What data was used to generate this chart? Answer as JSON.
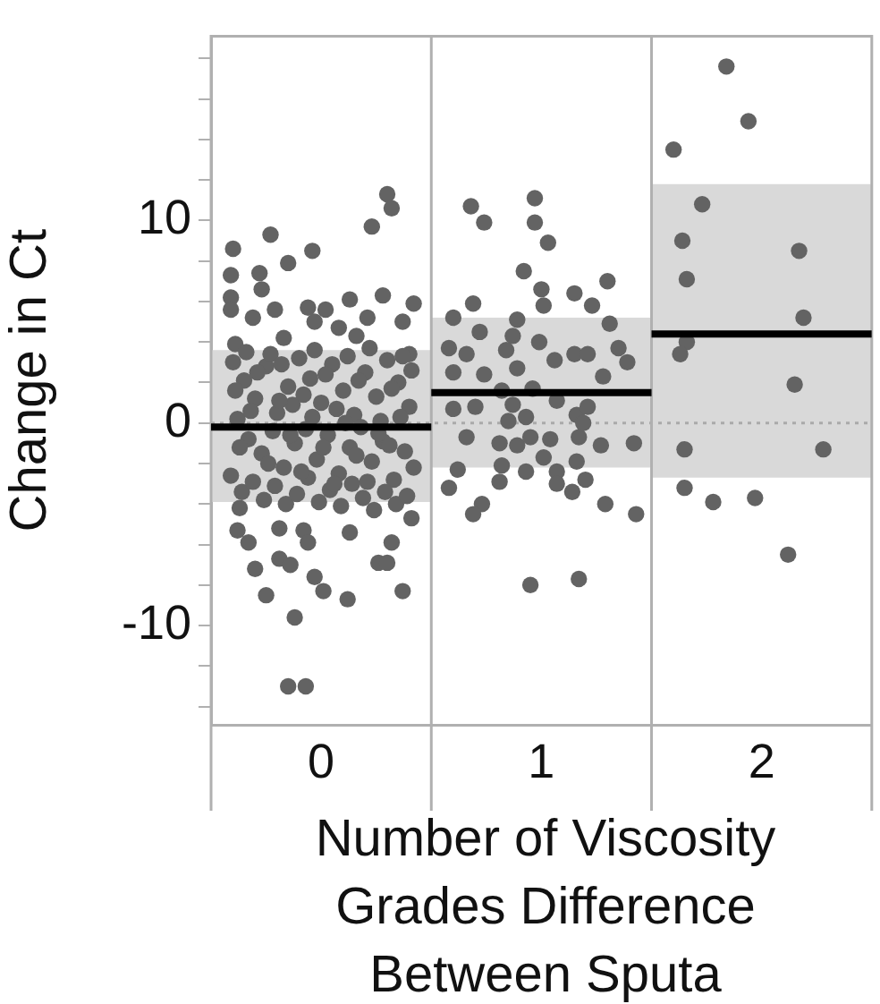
{
  "chart_data": {
    "type": "scatter",
    "xlabel": "Number of Viscosity Grades Difference Between Sputa",
    "ylabel": "Change in Ct",
    "xlim": [
      -0.5,
      2.5
    ],
    "xticks": [
      0,
      1,
      2
    ],
    "ylim": [
      -14.9,
      19.1
    ],
    "yticks": [
      {
        "value": -14,
        "label": null
      },
      {
        "value": -12,
        "label": null
      },
      -10,
      {
        "value": -8,
        "label": null
      },
      {
        "value": -6,
        "label": null
      },
      {
        "value": -4,
        "label": null
      },
      {
        "value": -2,
        "label": null
      },
      0,
      {
        "value": 2,
        "label": null
      },
      {
        "value": 4,
        "label": null
      },
      {
        "value": 6,
        "label": null
      },
      {
        "value": 8,
        "label": null
      },
      10,
      {
        "value": 12,
        "label": null
      },
      {
        "value": 14,
        "label": null
      },
      {
        "value": 16,
        "label": null
      },
      {
        "value": 18,
        "label": null
      }
    ],
    "grid": false,
    "legend": false,
    "marker": "circle",
    "ref_lines": [
      {
        "axis": "y",
        "value": 0,
        "color": "#aaaaaa",
        "line_style": "dotted"
      },
      {
        "axis": "x",
        "value": 0.5,
        "color": "#b0b0b0",
        "line_style": "solid"
      },
      {
        "axis": "x",
        "value": 1.5,
        "color": "#b0b0b0",
        "line_style": "solid"
      }
    ],
    "series": [
      {
        "type": "line",
        "marker": "none",
        "color": "#000000",
        "x": [
          -0.5,
          0.5
        ],
        "values": [
          -0.2,
          -0.2
        ],
        "lower": [
          -3.9,
          -3.9
        ],
        "upper": [
          3.6,
          3.6
        ]
      },
      {
        "type": "line",
        "marker": "none",
        "color": "#000000",
        "x": [
          0.5,
          1.5
        ],
        "values": [
          1.5,
          1.5
        ],
        "lower": [
          -2.2,
          -2.2
        ],
        "upper": [
          5.2,
          5.2
        ]
      },
      {
        "type": "line",
        "marker": "none",
        "color": "#000000",
        "x": [
          1.5,
          2.5
        ],
        "values": [
          4.4,
          4.4
        ],
        "lower": [
          -2.7,
          -2.7
        ],
        "upper": [
          11.8,
          11.8
        ]
      },
      {
        "type": "scatter",
        "color": "#636363",
        "x": [
          0.3,
          0.32,
          0.23,
          -0.4,
          -0.23,
          -0.04,
          -0.15,
          -0.41,
          -0.28,
          -0.27,
          -0.41,
          0.28,
          0.42,
          -0.41,
          -0.21,
          -0.06,
          0.02,
          0.13,
          -0.31,
          0.21,
          0.37,
          -0.03,
          0.08,
          -0.17,
          0.16,
          -0.39,
          0.4,
          -0.37,
          0.41,
          -0.38,
          -0.33,
          -0.19,
          -0.08,
          -0.06,
          0.13,
          0.32,
          0.26,
          0.3,
          -0.19,
          -0.14,
          -0.3,
          -0.03,
          0.01,
          -0.25,
          0.12,
          0.37,
          -0.12,
          -0.15,
          -0.07,
          -0.4,
          -0.35,
          -0.3,
          -0.25,
          -0.2,
          -0.15,
          -0.1,
          -0.05,
          0.0,
          0.05,
          0.1,
          0.15,
          0.2,
          0.25,
          0.3,
          0.35,
          0.4,
          -0.38,
          -0.33,
          -0.27,
          -0.22,
          -0.17,
          -0.12,
          -0.07,
          -0.02,
          0.03,
          0.08,
          0.13,
          0.18,
          0.23,
          0.28,
          0.33,
          0.38,
          -0.41,
          -0.36,
          -0.31,
          -0.26,
          -0.21,
          -0.16,
          -0.11,
          -0.06,
          -0.01,
          0.04,
          0.09,
          0.14,
          0.19,
          0.24,
          0.29,
          0.34,
          0.39,
          -0.39,
          -0.34,
          -0.29,
          -0.23,
          -0.18,
          -0.13,
          -0.08,
          -0.03,
          0.02,
          0.07,
          0.12,
          0.17,
          0.22,
          0.27,
          0.32,
          0.37,
          0.41,
          -0.37,
          -0.32,
          -0.24,
          -0.19,
          -0.14,
          -0.09,
          -0.04,
          0.01,
          0.06,
          0.11,
          0.16,
          0.21,
          0.26,
          0.31,
          0.36,
          0.42
        ],
        "values": [
          11.3,
          10.6,
          9.7,
          8.6,
          9.3,
          8.5,
          7.9,
          7.3,
          7.4,
          6.6,
          6.2,
          6.3,
          5.9,
          5.6,
          5.6,
          5.7,
          5.6,
          6.1,
          5.2,
          5.2,
          5.0,
          5.0,
          4.7,
          4.2,
          4.3,
          3.9,
          3.4,
          -4.2,
          -4.7,
          -5.3,
          -5.9,
          -5.2,
          -5.3,
          -5.9,
          -5.4,
          -5.9,
          -6.9,
          -6.9,
          -6.7,
          -7.0,
          -7.2,
          -7.6,
          -8.3,
          -8.5,
          -8.7,
          -8.3,
          -9.6,
          -13.0,
          -13.0,
          3.0,
          2.1,
          1.2,
          2.8,
          0.5,
          1.8,
          3.2,
          2.2,
          1.0,
          2.9,
          1.6,
          0.4,
          2.5,
          1.3,
          3.1,
          2.0,
          0.8,
          0.2,
          -0.8,
          -1.5,
          -0.4,
          -2.2,
          -1.0,
          -0.3,
          -1.8,
          -0.6,
          -2.5,
          -1.2,
          -0.2,
          -1.9,
          -0.9,
          -2.8,
          -1.4,
          -2.6,
          -3.4,
          -2.9,
          -3.8,
          -3.1,
          -4.0,
          -3.5,
          -2.7,
          -3.9,
          -3.3,
          -4.1,
          -3.0,
          -3.7,
          -4.3,
          -3.4,
          -4.0,
          -3.6,
          1.6,
          3.5,
          2.5,
          3.4,
          2.9,
          0.9,
          1.4,
          3.6,
          2.4,
          0.7,
          3.3,
          2.1,
          3.7,
          0.1,
          1.7,
          3.3,
          2.6,
          -1.2,
          0.6,
          -2.0,
          1.1,
          -0.6,
          -2.4,
          0.3,
          -1.2,
          -3.0,
          0.0,
          -1.6,
          -2.9,
          -0.5,
          -1.1,
          0.3,
          -2.2
        ]
      },
      {
        "type": "scatter",
        "color": "#636363",
        "x": [
          0.97,
          0.68,
          0.74,
          0.97,
          1.03,
          0.92,
          1.3,
          1.0,
          1.15,
          0.69,
          1.01,
          1.23,
          0.6,
          0.89,
          1.31,
          0.72,
          0.87,
          0.99,
          0.58,
          1.35,
          0.66,
          0.84,
          1.15,
          1.21,
          1.06,
          1.39,
          0.6,
          0.74,
          0.89,
          1.28,
          0.82,
          0.96,
          0.6,
          0.7,
          1.07,
          0.87,
          0.93,
          1.16,
          1.21,
          0.85,
          1.19,
          0.66,
          0.81,
          0.89,
          1.04,
          1.17,
          0.95,
          1.27,
          1.42,
          1.01,
          1.16,
          0.62,
          0.82,
          0.93,
          1.07,
          1.2,
          0.81,
          1.07,
          0.58,
          1.14,
          0.73,
          0.69,
          1.29,
          1.43,
          0.95,
          1.17
        ],
        "values": [
          11.1,
          10.7,
          9.9,
          9.9,
          8.9,
          7.5,
          7.0,
          6.6,
          6.4,
          5.9,
          5.8,
          5.8,
          5.2,
          5.1,
          4.9,
          4.5,
          4.3,
          4.0,
          3.7,
          3.7,
          3.4,
          3.6,
          3.4,
          3.4,
          3.1,
          3.0,
          2.5,
          2.4,
          2.7,
          2.3,
          1.6,
          1.7,
          0.7,
          0.8,
          1.1,
          0.9,
          0.3,
          0.4,
          0.8,
          0.1,
          0.0,
          -0.7,
          -1.0,
          -1.1,
          -0.8,
          -0.7,
          -0.7,
          -1.1,
          -1.0,
          -1.7,
          -1.9,
          -2.3,
          -2.1,
          -2.4,
          -2.4,
          -2.8,
          -2.9,
          -3.0,
          -3.2,
          -3.4,
          -4.0,
          -4.5,
          -4.0,
          -4.5,
          -8.0,
          -7.7
        ]
      },
      {
        "type": "scatter",
        "color": "#636363",
        "x": [
          1.84,
          1.94,
          1.6,
          1.73,
          1.64,
          2.17,
          1.66,
          2.19,
          1.66,
          1.63,
          2.15,
          1.65,
          2.28,
          1.65,
          1.78,
          1.97,
          2.12
        ],
        "values": [
          17.6,
          14.9,
          13.5,
          10.8,
          9.0,
          8.5,
          7.1,
          5.2,
          4.0,
          3.4,
          1.9,
          -1.3,
          -1.3,
          -3.2,
          -3.9,
          -3.7,
          -6.5
        ]
      }
    ]
  }
}
